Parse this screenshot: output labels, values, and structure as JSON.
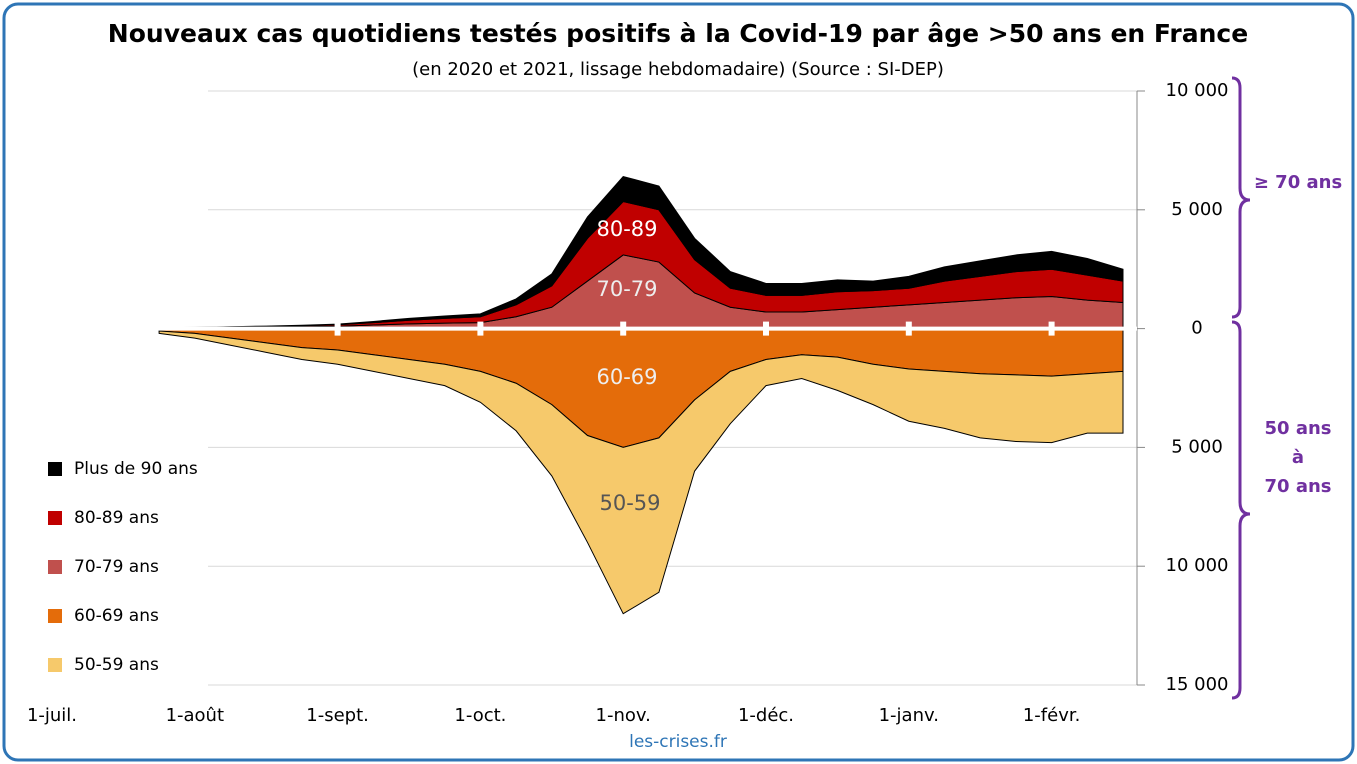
{
  "chart_data": {
    "type": "area",
    "title": "Nouveaux cas quotidiens testés positifs à la Covid-19 par âge >50 ans en France",
    "subtitle": "(en 2020 et 2021, lissage hebdomadaire) (Source : SI-DEP)",
    "categories": [
      "1-juil.",
      null,
      null,
      null,
      "1-août",
      null,
      null,
      null,
      "1-sept.",
      null,
      null,
      null,
      "1-oct.",
      null,
      null,
      null,
      "1-nov.",
      null,
      null,
      null,
      "1-déc.",
      null,
      null,
      null,
      "1-janv.",
      null,
      null,
      null,
      "1-févr.",
      null,
      null
    ],
    "series": [
      {
        "name": "Plus de 90 ans",
        "color": "#000000",
        "values": [
          null,
          null,
          null,
          5,
          5,
          10,
          15,
          20,
          30,
          50,
          80,
          100,
          120,
          250,
          500,
          900,
          1050,
          1000,
          900,
          700,
          500,
          500,
          500,
          400,
          500,
          600,
          650,
          700,
          750,
          700,
          500
        ]
      },
      {
        "name": "80-89 ans",
        "color": "#c00000",
        "values": [
          null,
          null,
          null,
          10,
          15,
          20,
          30,
          40,
          60,
          100,
          150,
          200,
          250,
          500,
          900,
          1800,
          2250,
          2200,
          1400,
          800,
          700,
          700,
          750,
          700,
          700,
          900,
          1000,
          1100,
          1150,
          1050,
          900
        ]
      },
      {
        "name": "70-79 ans",
        "color": "#c0504d",
        "values": [
          null,
          null,
          null,
          20,
          30,
          50,
          60,
          80,
          100,
          150,
          200,
          230,
          250,
          500,
          900,
          2000,
          3100,
          2800,
          1500,
          900,
          700,
          700,
          800,
          900,
          1000,
          1100,
          1200,
          1300,
          1350,
          1200,
          1100
        ]
      },
      {
        "name": "60-69 ans",
        "color": "#e46c0a",
        "values": [
          null,
          null,
          null,
          -100,
          -200,
          -400,
          -600,
          -800,
          -900,
          -1100,
          -1300,
          -1500,
          -1800,
          -2300,
          -3200,
          -4500,
          -5000,
          -4600,
          -3000,
          -1800,
          -1300,
          -1100,
          -1200,
          -1500,
          -1700,
          -1800,
          -1900,
          -1950,
          -2000,
          -1900,
          -1800
        ]
      },
      {
        "name": "50-59 ans",
        "color": "#f6c96b",
        "values": [
          null,
          null,
          null,
          -100,
          -200,
          -300,
          -400,
          -500,
          -600,
          -700,
          -800,
          -900,
          -1300,
          -2000,
          -3000,
          -4500,
          -7000,
          -6500,
          -3000,
          -2200,
          -1100,
          -1000,
          -1400,
          -1700,
          -2200,
          -2400,
          -2700,
          -2800,
          -2800,
          -2500,
          -2600
        ]
      }
    ],
    "ylim": [
      -15000,
      10000
    ],
    "yticks": [
      {
        "value": 10000,
        "label": "10 000"
      },
      {
        "value": 5000,
        "label": "5 000"
      },
      0,
      {
        "value": -5000,
        "label": "5 000"
      },
      {
        "value": -10000,
        "label": "10 000"
      },
      {
        "value": -15000,
        "label": "15 000"
      }
    ],
    "grid": true,
    "area_labels": [
      "80-89",
      "70-79",
      "60-69",
      "50-59"
    ],
    "brace_labels": {
      "upper": "≥ 70 ans",
      "lower": [
        "50 ans",
        "à",
        "70 ans"
      ]
    },
    "footer": "les-crises.fr"
  }
}
